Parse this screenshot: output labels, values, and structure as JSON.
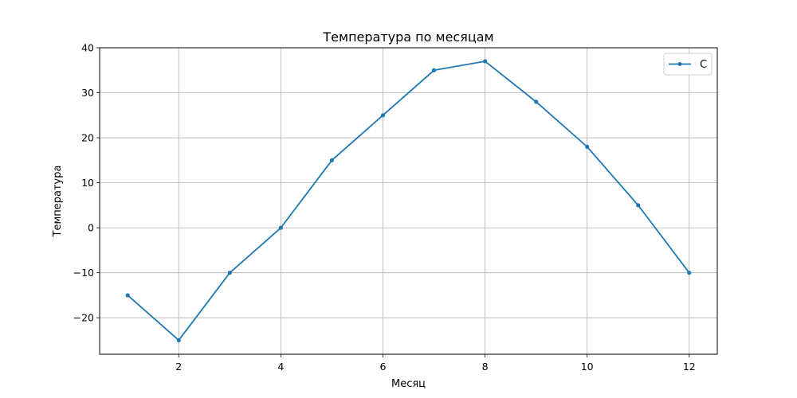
{
  "chart_data": {
    "type": "line",
    "title": "Температура по месяцам",
    "xlabel": "Месяц",
    "ylabel": "Температура",
    "x": [
      1,
      2,
      3,
      4,
      5,
      6,
      7,
      8,
      9,
      10,
      11,
      12
    ],
    "series": [
      {
        "name": "C",
        "values": [
          -15,
          -25,
          -10,
          0,
          15,
          25,
          35,
          37,
          28,
          18,
          5,
          -10
        ],
        "color": "#1f77b4",
        "marker": "point"
      }
    ],
    "xlim": [
      0.45,
      12.55
    ],
    "ylim": [
      -28.1,
      40
    ],
    "xticks": [
      2,
      4,
      6,
      8,
      10,
      12
    ],
    "xtick_labels": [
      "2",
      "4",
      "6",
      "8",
      "10",
      "12"
    ],
    "yticks": [
      -20,
      -10,
      0,
      10,
      20,
      30,
      40
    ],
    "ytick_labels": [
      "−20",
      "−10",
      "0",
      "10",
      "20",
      "30",
      "40"
    ],
    "grid": true,
    "legend_position": "top-right"
  }
}
